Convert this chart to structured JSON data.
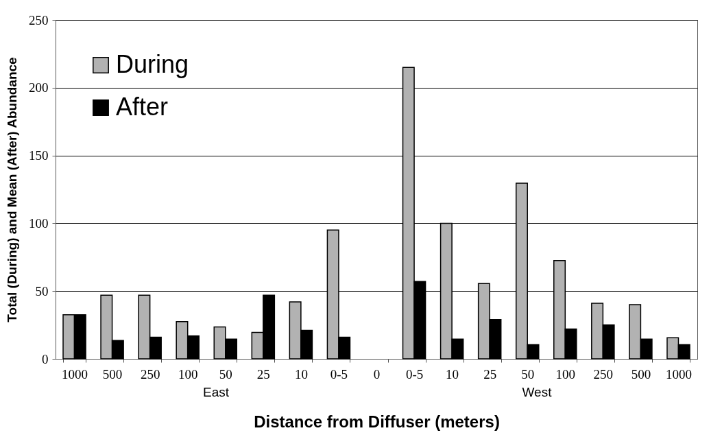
{
  "chart_data": {
    "type": "bar",
    "xlabel": "Distance from Diffuser (meters)",
    "ylabel": "Total (During) and Mean (After) Abundance",
    "categories": [
      "1000",
      "500",
      "250",
      "100",
      "50",
      "25",
      "10",
      "0-5",
      "0",
      "0-5",
      "10",
      "25",
      "50",
      "100",
      "250",
      "500",
      "1000"
    ],
    "series": [
      {
        "name": "During",
        "color": "#b2b2b2",
        "values": [
          32.5,
          47,
          47,
          27.5,
          23.5,
          19.5,
          42,
          95,
          null,
          215,
          100,
          55.5,
          129.5,
          72.5,
          41,
          40,
          15.5
        ]
      },
      {
        "name": "After",
        "color": "#000000",
        "values": [
          32.5,
          13.5,
          16,
          17,
          14.5,
          47,
          21,
          16,
          null,
          57,
          14.5,
          29,
          10.5,
          22,
          25,
          14.5,
          10.5
        ]
      }
    ],
    "ylim": [
      0,
      250
    ],
    "yticks": [
      0,
      50,
      100,
      150,
      200,
      250
    ],
    "grid": "y",
    "legend": "top left",
    "annotations": [
      "East",
      "West"
    ]
  }
}
